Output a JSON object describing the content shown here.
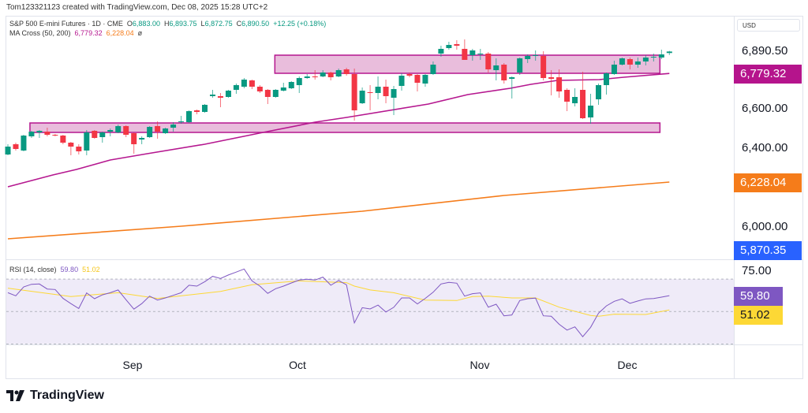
{
  "credit": "Tom123321123 created with TradingView.com, Dec 08, 2025 15:28 UTC+2",
  "legend": {
    "symbol": "S&P 500 E-mini Futures · 1D · CME",
    "o_label": "O",
    "o": "6,883.00",
    "h_label": "H",
    "h": "6,893.75",
    "l_label": "L",
    "l": "6,872.75",
    "c_label": "C",
    "c": "6,890.50",
    "change": "+12.25 (+0.18%)",
    "ma_name": "MA Cross (50, 200)",
    "ma50": "6,779.32",
    "ma200": "6,228.04",
    "ma_icon": "ø"
  },
  "currency": "USD",
  "price_axis": {
    "ticks": [
      "6,600.00",
      "6,400.00",
      "6,000.00"
    ],
    "tick_values": [
      6600,
      6400,
      6000
    ],
    "last_price": "6,890.50",
    "ma50_label": "6,779.32",
    "ma200_label": "6,228.04",
    "blue_label": "5,870.35"
  },
  "rsi": {
    "name": "RSI (14, close)",
    "value": "59.80",
    "ma_value": "51.02",
    "axis_tick": "75.00"
  },
  "time_axis": [
    "Sep",
    "Oct",
    "Nov",
    "Dec"
  ],
  "logo_text": "TradingView",
  "colors": {
    "up": "#089981",
    "down": "#f23645",
    "ma50": "#b5178f",
    "ma200": "#f57c1a",
    "rsi": "#7e57c2",
    "rsi_ma": "#fdd835",
    "blue": "#2962ff"
  },
  "chart_data": {
    "type": "candlestick",
    "title": "S&P 500 E-mini Futures · 1D · CME",
    "ylim": [
      5870,
      6960
    ],
    "x_tick_labels": [
      "Sep",
      "Oct",
      "Nov",
      "Dec"
    ],
    "x_tick_index": [
      15.8,
      36.8,
      59.9,
      78.7
    ],
    "candles_ohlc": [
      [
        6368,
        6420,
        6364,
        6408
      ],
      [
        6420,
        6428,
        6388,
        6396
      ],
      [
        6388,
        6468,
        6384,
        6464
      ],
      [
        6460,
        6488,
        6452,
        6484
      ],
      [
        6480,
        6492,
        6452,
        6488
      ],
      [
        6484,
        6504,
        6460,
        6468
      ],
      [
        6468,
        6472,
        6460,
        6464
      ],
      [
        6464,
        6468,
        6420,
        6428
      ],
      [
        6428,
        6432,
        6364,
        6408
      ],
      [
        6408,
        6420,
        6368,
        6384
      ],
      [
        6388,
        6492,
        6364,
        6480
      ],
      [
        6488,
        6492,
        6448,
        6452
      ],
      [
        6456,
        6484,
        6428,
        6480
      ],
      [
        6484,
        6500,
        6460,
        6492
      ],
      [
        6480,
        6520,
        6476,
        6512
      ],
      [
        6512,
        6516,
        6456,
        6468
      ],
      [
        6476,
        6480,
        6372,
        6420
      ],
      [
        6444,
        6460,
        6420,
        6452
      ],
      [
        6456,
        6512,
        6452,
        6508
      ],
      [
        6512,
        6536,
        6448,
        6484
      ],
      [
        6476,
        6504,
        6472,
        6500
      ],
      [
        6504,
        6532,
        6484,
        6520
      ],
      [
        6532,
        6564,
        6524,
        6536
      ],
      [
        6532,
        6592,
        6528,
        6588
      ],
      [
        6592,
        6596,
        6572,
        6584
      ],
      [
        6584,
        6624,
        6580,
        6620
      ],
      [
        6664,
        6696,
        6656,
        6672
      ],
      [
        6664,
        6680,
        6608,
        6656
      ],
      [
        6660,
        6696,
        6656,
        6692
      ],
      [
        6696,
        6728,
        6676,
        6720
      ],
      [
        6712,
        6756,
        6704,
        6748
      ],
      [
        6744,
        6748,
        6700,
        6712
      ],
      [
        6712,
        6720,
        6680,
        6688
      ],
      [
        6696,
        6700,
        6624,
        6660
      ],
      [
        6660,
        6700,
        6656,
        6696
      ],
      [
        6692,
        6732,
        6688,
        6708
      ],
      [
        6704,
        6740,
        6700,
        6736
      ],
      [
        6720,
        6764,
        6680,
        6756
      ],
      [
        6756,
        6776,
        6752,
        6764
      ],
      [
        6764,
        6796,
        6748,
        6760
      ],
      [
        6764,
        6796,
        6760,
        6784
      ],
      [
        6784,
        6788,
        6744,
        6760
      ],
      [
        6764,
        6804,
        6760,
        6796
      ],
      [
        6800,
        6808,
        6768,
        6776
      ],
      [
        6776,
        6804,
        6540,
        6592
      ],
      [
        6628,
        6708,
        6624,
        6692
      ],
      [
        6684,
        6720,
        6592,
        6680
      ],
      [
        6680,
        6764,
        6648,
        6712
      ],
      [
        6712,
        6748,
        6628,
        6664
      ],
      [
        6656,
        6716,
        6568,
        6700
      ],
      [
        6716,
        6780,
        6692,
        6768
      ],
      [
        6776,
        6784,
        6760,
        6768
      ],
      [
        6772,
        6776,
        6688,
        6732
      ],
      [
        6728,
        6776,
        6712,
        6772
      ],
      [
        6776,
        6840,
        6772,
        6824
      ],
      [
        6880,
        6920,
        6864,
        6904
      ],
      [
        6908,
        6940,
        6900,
        6924
      ],
      [
        6928,
        6948,
        6900,
        6920
      ],
      [
        6904,
        6952,
        6848,
        6848
      ],
      [
        6872,
        6904,
        6844,
        6896
      ],
      [
        6876,
        6904,
        6848,
        6880
      ],
      [
        6880,
        6888,
        6784,
        6800
      ],
      [
        6796,
        6856,
        6744,
        6820
      ],
      [
        6824,
        6832,
        6728,
        6744
      ],
      [
        6752,
        6764,
        6652,
        6760
      ],
      [
        6784,
        6860,
        6772,
        6856
      ],
      [
        6852,
        6876,
        6832,
        6868
      ],
      [
        6868,
        6896,
        6844,
        6872
      ],
      [
        6868,
        6892,
        6744,
        6756
      ],
      [
        6760,
        6796,
        6668,
        6752
      ],
      [
        6760,
        6800,
        6656,
        6688
      ],
      [
        6696,
        6704,
        6588,
        6636
      ],
      [
        6628,
        6704,
        6612,
        6660
      ],
      [
        6696,
        6788,
        6548,
        6552
      ],
      [
        6556,
        6676,
        6524,
        6616
      ],
      [
        6648,
        6728,
        6620,
        6720
      ],
      [
        6720,
        6784,
        6672,
        6780
      ],
      [
        6776,
        6844,
        6772,
        6824
      ],
      [
        6824,
        6860,
        6820,
        6856
      ],
      [
        6852,
        6860,
        6800,
        6824
      ],
      [
        6824,
        6860,
        6808,
        6840
      ],
      [
        6840,
        6872,
        6820,
        6860
      ],
      [
        6860,
        6880,
        6840,
        6864
      ],
      [
        6860,
        6900,
        6852,
        6876
      ],
      [
        6883,
        6893.75,
        6872.75,
        6890.5
      ]
    ],
    "ma50_points": [
      [
        0,
        6204
      ],
      [
        5.7,
        6264
      ],
      [
        8.7,
        6292
      ],
      [
        13,
        6340
      ],
      [
        17.7,
        6372
      ],
      [
        25,
        6420
      ],
      [
        32.4,
        6480
      ],
      [
        39,
        6532
      ],
      [
        43,
        6556
      ],
      [
        53.4,
        6624
      ],
      [
        58.4,
        6672
      ],
      [
        63.8,
        6704
      ],
      [
        66.4,
        6724
      ],
      [
        69.8,
        6744
      ],
      [
        75.1,
        6748
      ],
      [
        78.2,
        6760
      ],
      [
        84,
        6779.32
      ]
    ],
    "ma200_points": [
      [
        0,
        5940
      ],
      [
        22,
        6004
      ],
      [
        45,
        6080
      ],
      [
        63,
        6160
      ],
      [
        84,
        6228.04
      ]
    ],
    "zones": [
      {
        "start_index": 33.9,
        "end_index": 82.8,
        "top": 6872,
        "bottom": 6780
      },
      {
        "start_index": 2.8,
        "end_index": 82.8,
        "top": 6528,
        "bottom": 6480
      }
    ],
    "rsi_ylim": [
      30,
      70
    ],
    "rsi_levels": [
      70,
      50,
      30
    ],
    "rsi_values": [
      61.6,
      59.7,
      65.2,
      66.8,
      67.0,
      63.9,
      63.6,
      58.1,
      54.9,
      51.9,
      61.5,
      57.9,
      60.3,
      61.6,
      63.3,
      57.3,
      51.5,
      54.9,
      59.5,
      57.1,
      58.4,
      60.0,
      61.6,
      66.2,
      65.7,
      68.4,
      71.7,
      70.4,
      72.5,
      74.3,
      76.2,
      68.9,
      65.7,
      61.2,
      64.1,
      65.7,
      67.6,
      69.4,
      69.9,
      69.4,
      71.2,
      66.2,
      69.1,
      66.5,
      43.0,
      52.4,
      51.6,
      54.0,
      49.7,
      52.6,
      58.4,
      58.4,
      54.7,
      58.1,
      61.9,
      67.0,
      68.0,
      67.5,
      59.5,
      61.0,
      61.5,
      52.7,
      54.5,
      47.4,
      47.9,
      56.8,
      57.9,
      58.3,
      47.4,
      47.1,
      42.2,
      38.6,
      40.6,
      34.5,
      40.3,
      49.0,
      53.5,
      56.3,
      57.8,
      55.1,
      56.5,
      57.8,
      58.0,
      58.9,
      59.8
    ],
    "rsi_ma_points": [
      [
        0,
        64.4
      ],
      [
        8,
        59.2
      ],
      [
        14,
        61.6
      ],
      [
        19,
        58.1
      ],
      [
        27,
        62.4
      ],
      [
        31,
        66.5
      ],
      [
        37,
        68.9
      ],
      [
        43,
        67.8
      ],
      [
        44,
        65.7
      ],
      [
        46,
        63.3
      ],
      [
        49,
        61.6
      ],
      [
        53,
        57.1
      ],
      [
        57,
        56.8
      ],
      [
        59,
        59.2
      ],
      [
        61,
        59.5
      ],
      [
        64,
        58.4
      ],
      [
        67,
        58.4
      ],
      [
        70,
        52.7
      ],
      [
        74,
        47.6
      ],
      [
        75,
        47.1
      ],
      [
        77,
        48.4
      ],
      [
        81,
        48.2
      ],
      [
        84,
        51.02
      ]
    ]
  }
}
